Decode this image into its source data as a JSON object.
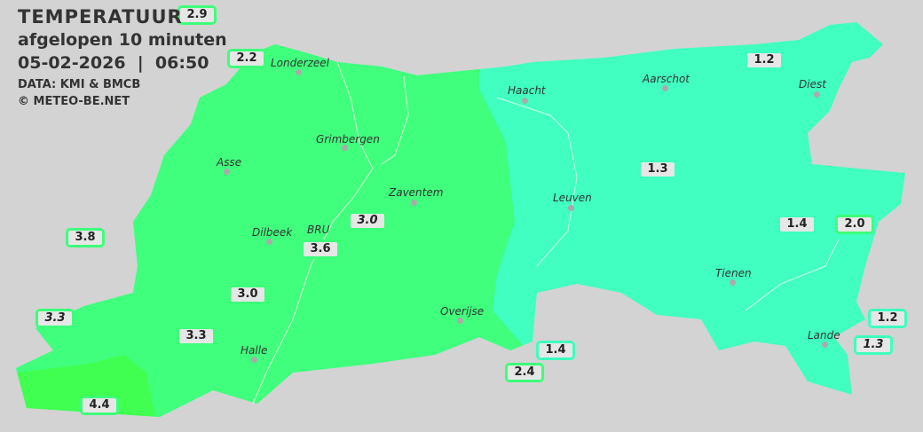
{
  "header": {
    "title": "TEMPERATUUR",
    "subtitle": "afgelopen 10 minuten",
    "datetime": "05-02-2026  |  06:50",
    "source": "DATA: KMI & BMCB",
    "copyright": "© METEO-BE.NET"
  },
  "colors": {
    "background": "#d3d3d3",
    "zone_3_to_4": "#40ff7c",
    "zone_4_plus": "#40ff50",
    "zone_1_to_2": "#40ffc0",
    "label_border_green": "#3dff7a",
    "label_border_cyan": "#3dffc0"
  },
  "cities": [
    {
      "name": "Londerzeel"
    },
    {
      "name": "Haacht"
    },
    {
      "name": "Aarschot"
    },
    {
      "name": "Diest"
    },
    {
      "name": "Grimbergen"
    },
    {
      "name": "Asse"
    },
    {
      "name": "Zaventem"
    },
    {
      "name": "Leuven"
    },
    {
      "name": "Dilbeek"
    },
    {
      "name": "BRU"
    },
    {
      "name": "Tienen"
    },
    {
      "name": "Overijse"
    },
    {
      "name": "Halle"
    },
    {
      "name": "Lande"
    }
  ],
  "stations": [
    {
      "value": "2.9"
    },
    {
      "value": "2.2"
    },
    {
      "value": "1.2"
    },
    {
      "value": "1.3"
    },
    {
      "value": "3.8"
    },
    {
      "value": "3.0"
    },
    {
      "value": "3.6"
    },
    {
      "value": "1.4"
    },
    {
      "value": "2.0"
    },
    {
      "value": "3.0"
    },
    {
      "value": "3.3"
    },
    {
      "value": "3.3"
    },
    {
      "value": "1.2"
    },
    {
      "value": "1.3"
    },
    {
      "value": "1.4"
    },
    {
      "value": "2.4"
    },
    {
      "value": "4.4"
    }
  ]
}
